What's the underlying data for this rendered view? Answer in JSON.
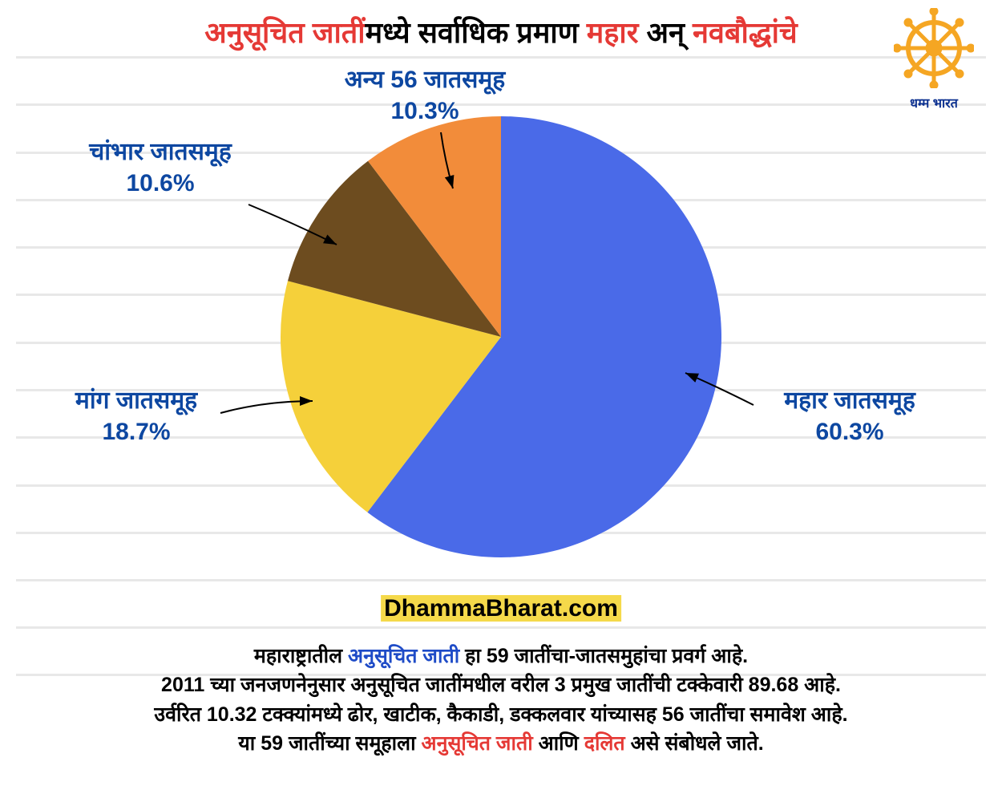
{
  "title": {
    "part1": "अनुसूचित जातीं",
    "part1_color": "#e53935",
    "part2": "मध्ये सर्वाधिक प्रमाण ",
    "part2_color": "#000000",
    "part3": "महार",
    "part3_color": "#e53935",
    "part4": " अन् ",
    "part4_color": "#000000",
    "part5": "नवबौद्धांचे",
    "part5_color": "#e53935",
    "fontsize": 36
  },
  "logo": {
    "text": "धम्म भारत",
    "wheel_color": "#f5a623"
  },
  "chart": {
    "type": "pie",
    "background_color": "#ffffff",
    "grid_color": "#e8e8e8",
    "label_color": "#0d47a1",
    "label_fontsize": 30,
    "slices": [
      {
        "label": "महार जातसमूह",
        "value": 60.3,
        "percent": "60.3%",
        "color": "#4a6ae8"
      },
      {
        "label": "मांग जातसमूह",
        "value": 18.7,
        "percent": "18.7%",
        "color": "#f5d03a"
      },
      {
        "label": "चांभार जातसमूह",
        "value": 10.6,
        "percent": "10.6%",
        "color": "#6d4c1f"
      },
      {
        "label": "अन्य 56 जातसमूह",
        "value": 10.3,
        "percent": "10.3%",
        "color": "#f28c3a"
      }
    ]
  },
  "website": {
    "part1": "Dhamma",
    "part2": "Bharat",
    "part3": ".com",
    "highlight_bg": "#f5d94a"
  },
  "footer": {
    "line1_a": "महाराष्ट्रातील ",
    "line1_b": "अनुसूचित जाती",
    "line1_c": " हा 59 जातींचा-जातसमुहांचा प्रवर्ग आहे.",
    "line2": "2011 च्या जनजणनेनुसार अनुसूचित जातींमधील वरील 3 प्रमुख जातींची टक्केवारी 89.68 आहे.",
    "line3": "उर्वरित 10.32 टक्क्यांमध्ये ढोर, खाटीक, कैकाडी, डक्कलवार यांच्यासह 56 जातींचा समावेश आहे.",
    "line4_a": "या 59 जातींच्या समूहाला ",
    "line4_b": "अनुसूचित जाती",
    "line4_c": " आणि ",
    "line4_d": "दलित",
    "line4_e": " असे संबोधले जाते."
  }
}
